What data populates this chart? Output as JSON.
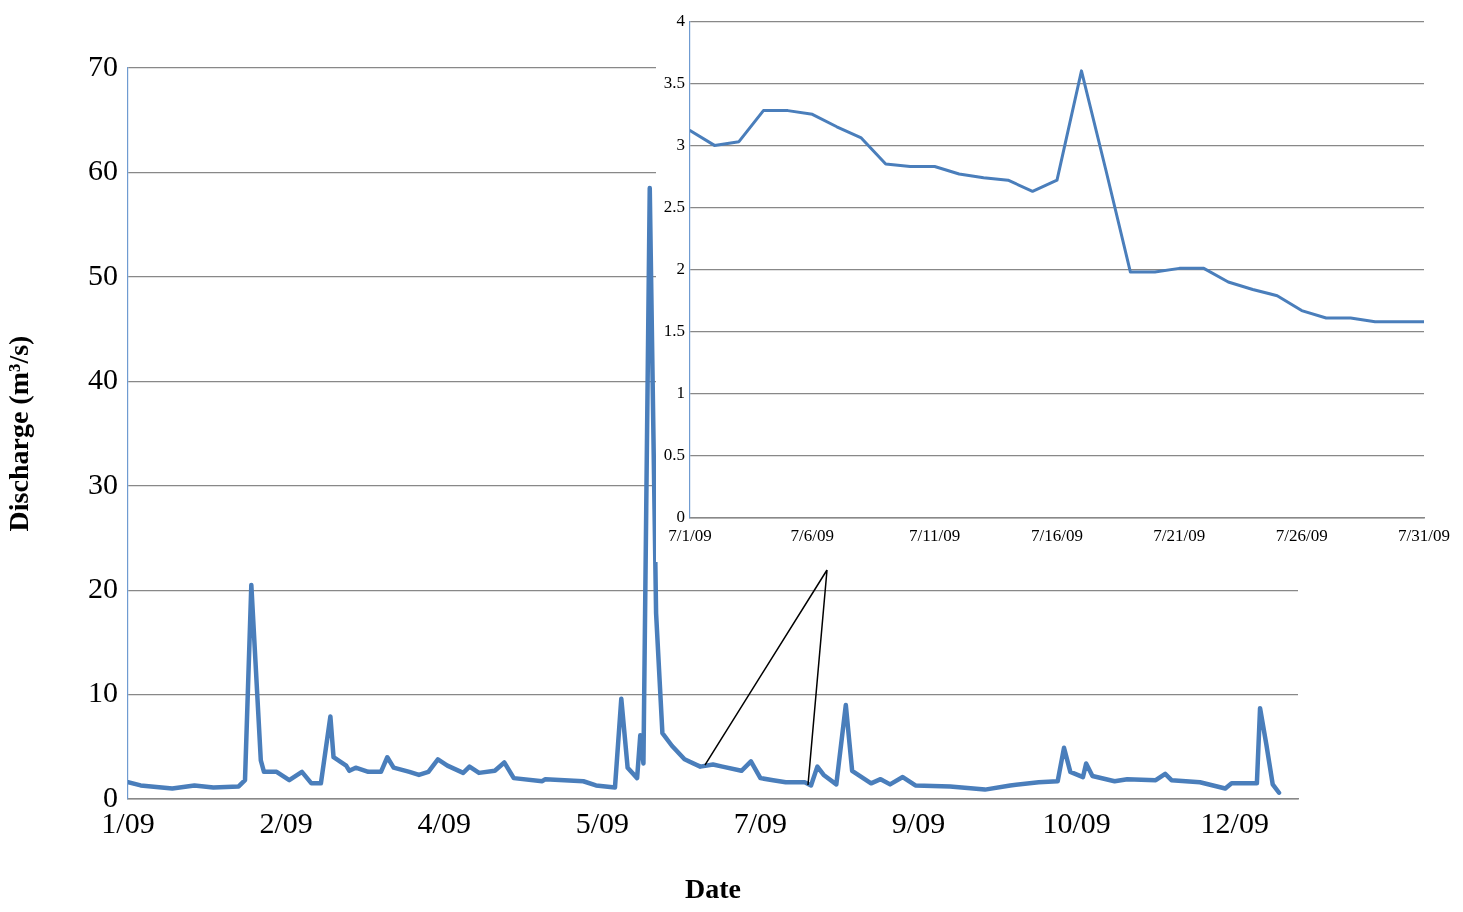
{
  "chart_data": [
    {
      "type": "line",
      "xlabel": "Date",
      "ylabel": "Discharge (m³/s)",
      "color": "#4a7ebb",
      "grid": "y",
      "legend": false,
      "marker": "none",
      "line_style": "solid",
      "x": [
        "2009-01-01",
        "2009-01-05",
        "2009-01-15",
        "2009-01-22",
        "2009-01-28",
        "2009-02-05",
        "2009-02-07",
        "2009-02-09",
        "2009-02-12",
        "2009-02-13",
        "2009-02-17",
        "2009-02-21",
        "2009-02-25",
        "2009-02-28",
        "2009-03-03",
        "2009-03-06",
        "2009-03-07",
        "2009-03-11",
        "2009-03-12",
        "2009-03-14",
        "2009-03-18",
        "2009-03-22",
        "2009-03-24",
        "2009-03-26",
        "2009-03-31",
        "2009-04-03",
        "2009-04-06",
        "2009-04-09",
        "2009-04-12",
        "2009-04-17",
        "2009-04-19",
        "2009-04-22",
        "2009-04-27",
        "2009-04-30",
        "2009-05-03",
        "2009-05-12",
        "2009-05-13",
        "2009-05-25",
        "2009-05-29",
        "2009-06-04",
        "2009-06-06",
        "2009-06-08",
        "2009-06-11",
        "2009-06-12",
        "2009-06-13",
        "2009-06-15",
        "2009-06-17",
        "2009-06-19",
        "2009-06-22",
        "2009-06-26",
        "2009-07-01",
        "2009-07-05",
        "2009-07-08",
        "2009-07-14",
        "2009-07-17",
        "2009-07-20",
        "2009-07-24",
        "2009-07-28",
        "2009-08-03",
        "2009-08-05",
        "2009-08-07",
        "2009-08-09",
        "2009-08-13",
        "2009-08-16",
        "2009-08-18",
        "2009-08-24",
        "2009-08-27",
        "2009-08-30",
        "2009-09-03",
        "2009-09-07",
        "2009-09-18",
        "2009-09-29",
        "2009-10-07",
        "2009-10-16",
        "2009-10-22",
        "2009-10-24",
        "2009-10-26",
        "2009-10-30",
        "2009-10-31",
        "2009-11-02",
        "2009-11-09",
        "2009-11-13",
        "2009-11-22",
        "2009-11-25",
        "2009-11-27",
        "2009-12-06",
        "2009-12-14",
        "2009-12-16",
        "2009-12-24",
        "2009-12-25",
        "2009-12-27",
        "2009-12-29",
        "2009-12-31"
      ],
      "values": [
        1.6,
        1.3,
        1.0,
        1.3,
        1.1,
        1.2,
        1.8,
        20.5,
        3.7,
        2.6,
        2.6,
        1.8,
        2.6,
        1.5,
        1.5,
        7.9,
        4.0,
        3.2,
        2.7,
        3.0,
        2.6,
        2.6,
        4.0,
        3.0,
        2.6,
        2.3,
        2.6,
        3.8,
        3.2,
        2.5,
        3.1,
        2.5,
        2.7,
        3.5,
        2.0,
        1.7,
        1.9,
        1.7,
        1.3,
        1.1,
        9.6,
        3.0,
        2.0,
        6.1,
        3.4,
        58.5,
        17.8,
        6.3,
        5.1,
        3.8,
        3.1,
        3.3,
        3.1,
        2.7,
        3.6,
        2.0,
        1.8,
        1.6,
        1.6,
        1.3,
        3.1,
        2.3,
        1.4,
        9.0,
        2.7,
        1.5,
        1.9,
        1.4,
        2.1,
        1.3,
        1.2,
        0.9,
        1.3,
        1.6,
        1.7,
        4.9,
        2.6,
        2.1,
        3.4,
        2.2,
        1.7,
        1.9,
        1.8,
        2.4,
        1.8,
        1.6,
        1.0,
        1.5,
        1.5,
        8.7,
        5.2,
        1.4,
        0.6
      ],
      "xlim": [
        "2009-01-01",
        "2010-01-06"
      ],
      "xticks": [
        {
          "value": "2009-01-01",
          "label": "1/09"
        },
        {
          "value": "2009-02-20",
          "label": "2/09"
        },
        {
          "value": "2009-04-11",
          "label": "4/09"
        },
        {
          "value": "2009-05-31",
          "label": "5/09"
        },
        {
          "value": "2009-07-20",
          "label": "7/09"
        },
        {
          "value": "2009-09-08",
          "label": "9/09"
        },
        {
          "value": "2009-10-28",
          "label": "10/09"
        },
        {
          "value": "2009-12-17",
          "label": "12/09"
        }
      ],
      "ylim": [
        0,
        70
      ],
      "yticks": [
        0,
        10,
        20,
        30,
        40,
        50,
        60,
        70
      ]
    },
    {
      "type": "line",
      "color": "#4a7ebb",
      "grid": "y",
      "legend": false,
      "marker": "none",
      "line_style": "solid",
      "x": [
        "--07-01",
        "--07-02",
        "--07-03",
        "--07-04",
        "--07-05",
        "--07-06",
        "--07-07",
        "--07-08",
        "--07-09",
        "--07-10",
        "--07-11",
        "--07-12",
        "--07-13",
        "--07-14",
        "--07-15",
        "--07-16",
        "--07-17",
        "--07-18",
        "--07-19",
        "--07-20",
        "--07-21",
        "--07-22",
        "--07-23",
        "--07-24",
        "--07-25",
        "--07-26",
        "--07-27",
        "--07-28",
        "--07-29",
        "--07-30",
        "--07-31"
      ],
      "values": [
        3.12,
        3.0,
        3.03,
        3.28,
        3.28,
        3.25,
        3.15,
        3.06,
        2.85,
        2.83,
        2.83,
        2.77,
        2.74,
        2.72,
        2.63,
        2.72,
        3.6,
        2.8,
        1.98,
        1.98,
        2.01,
        2.01,
        1.9,
        1.84,
        1.79,
        1.67,
        1.61,
        1.61,
        1.58,
        1.58,
        1.58
      ],
      "xlim": [
        "--07-01",
        "--07-31"
      ],
      "xticks": [
        {
          "value": "--07-01",
          "label": "7/1/09"
        },
        {
          "value": "--07-06",
          "label": "7/6/09"
        },
        {
          "value": "--07-11",
          "label": "7/11/09"
        },
        {
          "value": "--07-16",
          "label": "7/16/09"
        },
        {
          "value": "--07-21",
          "label": "7/21/09"
        },
        {
          "value": "--07-26",
          "label": "7/26/09"
        },
        {
          "value": "--07-31",
          "label": "7/31/09"
        }
      ],
      "ylim": [
        0,
        4
      ],
      "yticks": [
        0,
        0.5,
        1,
        1.5,
        2,
        2.5,
        3,
        3.5,
        4
      ]
    }
  ]
}
